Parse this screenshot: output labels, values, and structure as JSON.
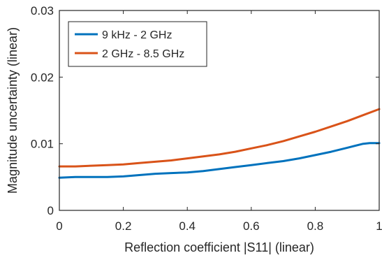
{
  "chart_data": {
    "type": "line",
    "xlabel": "Reflection coefficient |S11| (linear)",
    "ylabel": "Magnitude uncertainty (linear)",
    "xlim": [
      0,
      1
    ],
    "ylim": [
      0,
      0.03
    ],
    "x_ticks": [
      0,
      0.2,
      0.4,
      0.6,
      0.8,
      1
    ],
    "x_tick_labels": [
      "0",
      "0.2",
      "0.4",
      "0.6",
      "0.8",
      "1"
    ],
    "y_ticks": [
      0,
      0.01,
      0.02,
      0.03
    ],
    "y_tick_labels": [
      "0",
      "0.01",
      "0.02",
      "0.03"
    ],
    "grid": false,
    "legend_position": "top-left",
    "series": [
      {
        "name": "9 kHz - 2 GHz",
        "color": "#0072BD",
        "x": [
          0,
          0.05,
          0.1,
          0.15,
          0.2,
          0.25,
          0.3,
          0.35,
          0.4,
          0.45,
          0.5,
          0.55,
          0.6,
          0.65,
          0.7,
          0.75,
          0.8,
          0.85,
          0.9,
          0.95,
          0.97,
          1.0
        ],
        "y": [
          0.0049,
          0.005,
          0.005,
          0.005,
          0.0051,
          0.0053,
          0.0055,
          0.0056,
          0.0057,
          0.0059,
          0.0062,
          0.0065,
          0.0068,
          0.0071,
          0.0074,
          0.0078,
          0.0083,
          0.0088,
          0.0094,
          0.01,
          0.0101,
          0.0101
        ]
      },
      {
        "name": "2 GHz - 8.5 GHz",
        "color": "#D95319",
        "x": [
          0,
          0.05,
          0.1,
          0.15,
          0.2,
          0.25,
          0.3,
          0.35,
          0.4,
          0.45,
          0.5,
          0.55,
          0.6,
          0.65,
          0.7,
          0.75,
          0.8,
          0.85,
          0.9,
          0.95,
          1.0
        ],
        "y": [
          0.0066,
          0.0066,
          0.0067,
          0.0068,
          0.0069,
          0.0071,
          0.0073,
          0.0075,
          0.0078,
          0.0081,
          0.0084,
          0.0088,
          0.0093,
          0.0098,
          0.0104,
          0.0111,
          0.0118,
          0.0126,
          0.0134,
          0.0143,
          0.0152
        ]
      }
    ]
  }
}
